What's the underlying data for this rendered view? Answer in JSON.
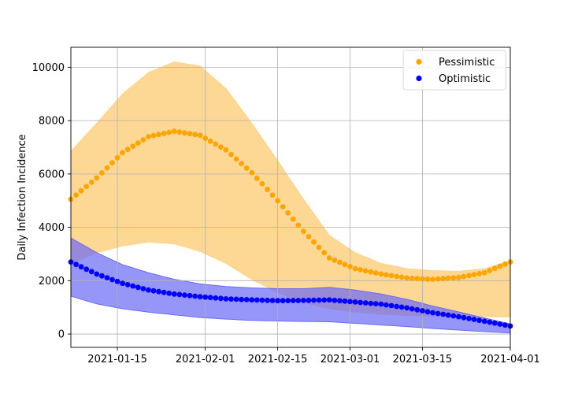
{
  "chart_data": {
    "type": "scatter",
    "title": "",
    "xlabel": "",
    "ylabel": "Daily Infection Incidence",
    "x_start": "2021-01-06",
    "x_end": "2021-04-01",
    "xlim": [
      "2021-01-06",
      "2021-04-01"
    ],
    "ylim": [
      -500,
      10750
    ],
    "x_ticks": [
      "2021-01-15",
      "2021-02-01",
      "2021-02-15",
      "2021-03-01",
      "2021-03-15",
      "2021-04-01"
    ],
    "y_ticks": [
      0,
      2000,
      4000,
      6000,
      8000,
      10000
    ],
    "grid": true,
    "legend_position": "top-right",
    "series": [
      {
        "name": "Pessimistic",
        "color": "#ffa500",
        "band_color": "#fdd48a",
        "points": [
          [
            "2021-01-06",
            5050
          ],
          [
            "2021-01-11",
            5850
          ],
          [
            "2021-01-16",
            6800
          ],
          [
            "2021-01-21",
            7400
          ],
          [
            "2021-01-26",
            7600
          ],
          [
            "2021-01-31",
            7450
          ],
          [
            "2021-02-05",
            6900
          ],
          [
            "2021-02-10",
            6050
          ],
          [
            "2021-02-15",
            5000
          ],
          [
            "2021-02-20",
            3850
          ],
          [
            "2021-02-25",
            2850
          ],
          [
            "2021-03-02",
            2450
          ],
          [
            "2021-03-07",
            2250
          ],
          [
            "2021-03-12",
            2100
          ],
          [
            "2021-03-17",
            2050
          ],
          [
            "2021-03-22",
            2120
          ],
          [
            "2021-03-27",
            2300
          ],
          [
            "2021-04-01",
            2700
          ]
        ],
        "upper": [
          [
            "2021-01-06",
            6850
          ],
          [
            "2021-01-11",
            7900
          ],
          [
            "2021-01-16",
            9000
          ],
          [
            "2021-01-21",
            9800
          ],
          [
            "2021-01-26",
            10200
          ],
          [
            "2021-01-31",
            10050
          ],
          [
            "2021-02-05",
            9200
          ],
          [
            "2021-02-10",
            7900
          ],
          [
            "2021-02-15",
            6500
          ],
          [
            "2021-02-20",
            5050
          ],
          [
            "2021-02-25",
            3700
          ],
          [
            "2021-03-02",
            3050
          ],
          [
            "2021-03-07",
            2650
          ],
          [
            "2021-03-12",
            2450
          ],
          [
            "2021-03-17",
            2380
          ],
          [
            "2021-03-22",
            2350
          ],
          [
            "2021-03-27",
            2450
          ],
          [
            "2021-04-01",
            2750
          ]
        ],
        "lower": [
          [
            "2021-01-06",
            2650
          ],
          [
            "2021-01-11",
            3050
          ],
          [
            "2021-01-16",
            3300
          ],
          [
            "2021-01-21",
            3450
          ],
          [
            "2021-01-26",
            3380
          ],
          [
            "2021-01-31",
            3100
          ],
          [
            "2021-02-05",
            2650
          ],
          [
            "2021-02-10",
            2050
          ],
          [
            "2021-02-15",
            1550
          ],
          [
            "2021-02-20",
            1180
          ],
          [
            "2021-02-25",
            950
          ],
          [
            "2021-03-02",
            820
          ],
          [
            "2021-03-07",
            740
          ],
          [
            "2021-03-12",
            700
          ],
          [
            "2021-03-17",
            680
          ],
          [
            "2021-03-22",
            660
          ],
          [
            "2021-03-27",
            650
          ],
          [
            "2021-04-01",
            640
          ]
        ]
      },
      {
        "name": "Optimistic",
        "color": "#0000ff",
        "band_color": "#6a6af5",
        "points": [
          [
            "2021-01-06",
            2700
          ],
          [
            "2021-01-11",
            2250
          ],
          [
            "2021-01-16",
            1900
          ],
          [
            "2021-01-21",
            1650
          ],
          [
            "2021-01-26",
            1500
          ],
          [
            "2021-01-31",
            1400
          ],
          [
            "2021-02-05",
            1320
          ],
          [
            "2021-02-10",
            1280
          ],
          [
            "2021-02-15",
            1250
          ],
          [
            "2021-02-20",
            1260
          ],
          [
            "2021-02-25",
            1280
          ],
          [
            "2021-03-02",
            1200
          ],
          [
            "2021-03-07",
            1120
          ],
          [
            "2021-03-12",
            980
          ],
          [
            "2021-03-17",
            800
          ],
          [
            "2021-03-22",
            650
          ],
          [
            "2021-03-27",
            480
          ],
          [
            "2021-04-01",
            300
          ]
        ],
        "upper": [
          [
            "2021-01-06",
            3600
          ],
          [
            "2021-01-11",
            3050
          ],
          [
            "2021-01-16",
            2600
          ],
          [
            "2021-01-21",
            2300
          ],
          [
            "2021-01-26",
            2050
          ],
          [
            "2021-01-31",
            1880
          ],
          [
            "2021-02-05",
            1780
          ],
          [
            "2021-02-10",
            1730
          ],
          [
            "2021-02-15",
            1700
          ],
          [
            "2021-02-20",
            1700
          ],
          [
            "2021-02-25",
            1750
          ],
          [
            "2021-03-02",
            1650
          ],
          [
            "2021-03-07",
            1500
          ],
          [
            "2021-03-12",
            1300
          ],
          [
            "2021-03-17",
            1050
          ],
          [
            "2021-03-22",
            830
          ],
          [
            "2021-03-27",
            600
          ],
          [
            "2021-04-01",
            380
          ]
        ],
        "lower": [
          [
            "2021-01-06",
            1420
          ],
          [
            "2021-01-11",
            1130
          ],
          [
            "2021-01-16",
            950
          ],
          [
            "2021-01-21",
            820
          ],
          [
            "2021-01-26",
            720
          ],
          [
            "2021-01-31",
            620
          ],
          [
            "2021-02-05",
            560
          ],
          [
            "2021-02-10",
            510
          ],
          [
            "2021-02-15",
            490
          ],
          [
            "2021-02-20",
            470
          ],
          [
            "2021-02-25",
            460
          ],
          [
            "2021-03-02",
            400
          ],
          [
            "2021-03-07",
            340
          ],
          [
            "2021-03-12",
            280
          ],
          [
            "2021-03-17",
            210
          ],
          [
            "2021-03-22",
            150
          ],
          [
            "2021-03-27",
            90
          ],
          [
            "2021-04-01",
            40
          ]
        ]
      }
    ]
  }
}
